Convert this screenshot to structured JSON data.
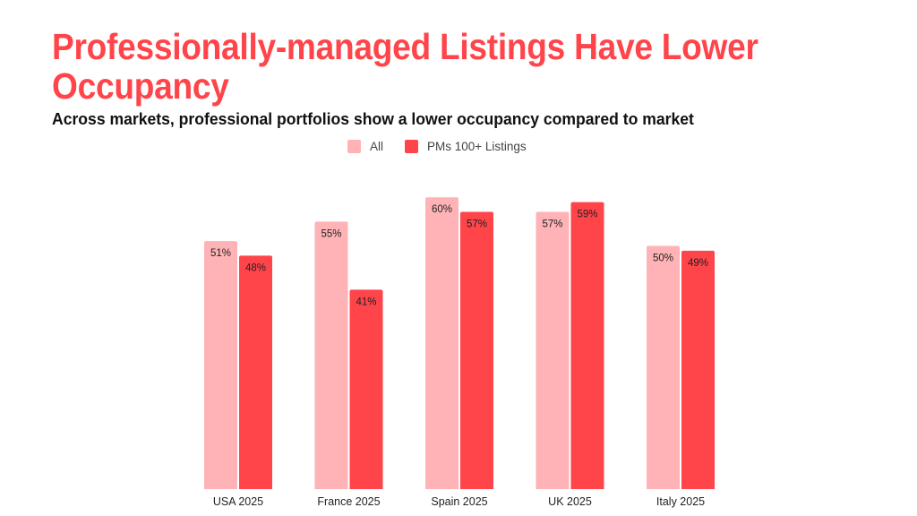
{
  "chart_data": {
    "type": "bar",
    "title": "Professionally-managed Listings Have Lower Occupancy",
    "subtitle": "Across markets, professional portfolios show a lower occupancy compared to market",
    "xlabel": "",
    "ylabel": "",
    "categories": [
      "USA 2025",
      "France 2025",
      "Spain 2025",
      "UK 2025",
      "Italy 2025"
    ],
    "series": [
      {
        "name": "All",
        "color": "#ffb3b6",
        "values": [
          51,
          55,
          60,
          57,
          50
        ],
        "labels": [
          "51%",
          "55%",
          "60%",
          "57%",
          "50%"
        ]
      },
      {
        "name": "PMs 100+ Listings",
        "color": "#ff444a",
        "values": [
          48,
          41,
          57,
          59,
          49
        ],
        "labels": [
          "48%",
          "41%",
          "57%",
          "59%",
          "49%"
        ]
      }
    ],
    "ylim": [
      0,
      100
    ],
    "unit": "%",
    "grid": false,
    "legend": "top-center",
    "axis_visible": false
  }
}
